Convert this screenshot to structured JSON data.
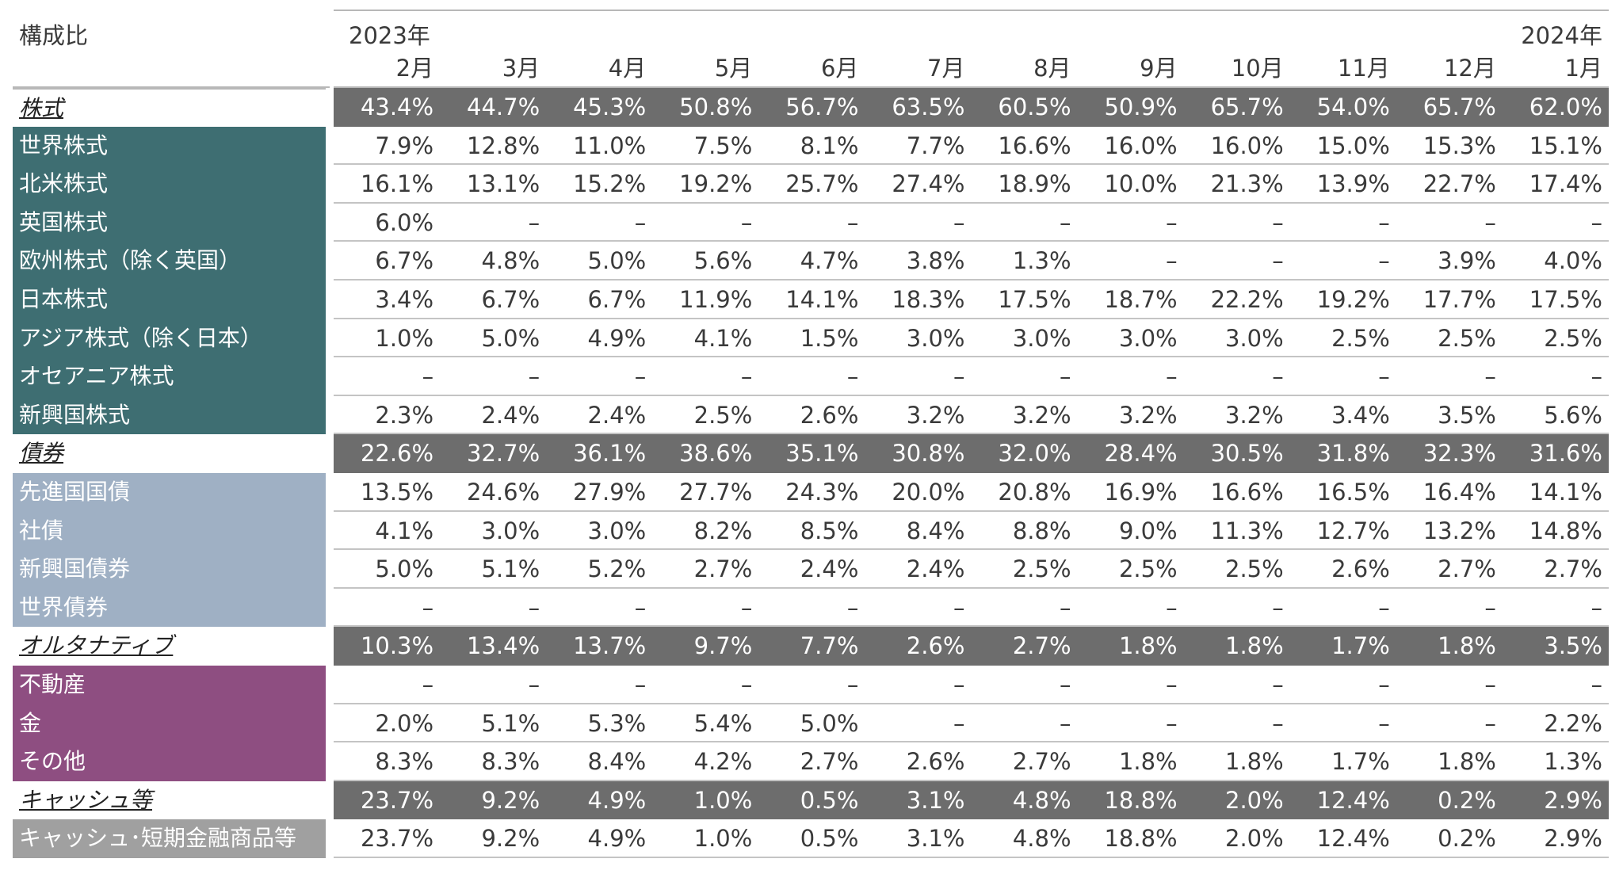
{
  "corner_label": "構成比",
  "year_start": "2023年",
  "year_end": "2024年",
  "months": [
    "2月",
    "3月",
    "4月",
    "5月",
    "6月",
    "7月",
    "8月",
    "9月",
    "10月",
    "11月",
    "12月",
    "1月"
  ],
  "rows": [
    {
      "type": "total",
      "group": "equity",
      "label": "株式",
      "values": [
        "43.4%",
        "44.7%",
        "45.3%",
        "50.8%",
        "56.7%",
        "63.5%",
        "60.5%",
        "50.9%",
        "65.7%",
        "54.0%",
        "65.7%",
        "62.0%"
      ]
    },
    {
      "type": "sub",
      "group": "equity",
      "label": "世界株式",
      "values": [
        "7.9%",
        "12.8%",
        "11.0%",
        "7.5%",
        "8.1%",
        "7.7%",
        "16.6%",
        "16.0%",
        "16.0%",
        "15.0%",
        "15.3%",
        "15.1%"
      ]
    },
    {
      "type": "sub",
      "group": "equity",
      "label": "北米株式",
      "values": [
        "16.1%",
        "13.1%",
        "15.2%",
        "19.2%",
        "25.7%",
        "27.4%",
        "18.9%",
        "10.0%",
        "21.3%",
        "13.9%",
        "22.7%",
        "17.4%"
      ]
    },
    {
      "type": "sub",
      "group": "equity",
      "label": "英国株式",
      "values": [
        "6.0%",
        "–",
        "–",
        "–",
        "–",
        "–",
        "–",
        "–",
        "–",
        "–",
        "–",
        "–"
      ]
    },
    {
      "type": "sub",
      "group": "equity",
      "label": "欧州株式（除く英国）",
      "values": [
        "6.7%",
        "4.8%",
        "5.0%",
        "5.6%",
        "4.7%",
        "3.8%",
        "1.3%",
        "–",
        "–",
        "–",
        "3.9%",
        "4.0%"
      ]
    },
    {
      "type": "sub",
      "group": "equity",
      "label": "日本株式",
      "values": [
        "3.4%",
        "6.7%",
        "6.7%",
        "11.9%",
        "14.1%",
        "18.3%",
        "17.5%",
        "18.7%",
        "22.2%",
        "19.2%",
        "17.7%",
        "17.5%"
      ]
    },
    {
      "type": "sub",
      "group": "equity",
      "label": "アジア株式（除く日本）",
      "values": [
        "1.0%",
        "5.0%",
        "4.9%",
        "4.1%",
        "1.5%",
        "3.0%",
        "3.0%",
        "3.0%",
        "3.0%",
        "2.5%",
        "2.5%",
        "2.5%"
      ]
    },
    {
      "type": "sub",
      "group": "equity",
      "label": "オセアニア株式",
      "values": [
        "–",
        "–",
        "–",
        "–",
        "–",
        "–",
        "–",
        "–",
        "–",
        "–",
        "–",
        "–"
      ]
    },
    {
      "type": "sub",
      "group": "equity",
      "label": "新興国株式",
      "values": [
        "2.3%",
        "2.4%",
        "2.4%",
        "2.5%",
        "2.6%",
        "3.2%",
        "3.2%",
        "3.2%",
        "3.2%",
        "3.4%",
        "3.5%",
        "5.6%"
      ]
    },
    {
      "type": "total",
      "group": "bond",
      "label": "債券",
      "values": [
        "22.6%",
        "32.7%",
        "36.1%",
        "38.6%",
        "35.1%",
        "30.8%",
        "32.0%",
        "28.4%",
        "30.5%",
        "31.8%",
        "32.3%",
        "31.6%"
      ]
    },
    {
      "type": "sub",
      "group": "bond",
      "label": "先進国国債",
      "values": [
        "13.5%",
        "24.6%",
        "27.9%",
        "27.7%",
        "24.3%",
        "20.0%",
        "20.8%",
        "16.9%",
        "16.6%",
        "16.5%",
        "16.4%",
        "14.1%"
      ]
    },
    {
      "type": "sub",
      "group": "bond",
      "label": "社債",
      "values": [
        "4.1%",
        "3.0%",
        "3.0%",
        "8.2%",
        "8.5%",
        "8.4%",
        "8.8%",
        "9.0%",
        "11.3%",
        "12.7%",
        "13.2%",
        "14.8%"
      ]
    },
    {
      "type": "sub",
      "group": "bond",
      "label": "新興国債券",
      "values": [
        "5.0%",
        "5.1%",
        "5.2%",
        "2.7%",
        "2.4%",
        "2.4%",
        "2.5%",
        "2.5%",
        "2.5%",
        "2.6%",
        "2.7%",
        "2.7%"
      ]
    },
    {
      "type": "sub",
      "group": "bond",
      "label": "世界債券",
      "values": [
        "–",
        "–",
        "–",
        "–",
        "–",
        "–",
        "–",
        "–",
        "–",
        "–",
        "–",
        "–"
      ]
    },
    {
      "type": "total",
      "group": "alt",
      "label": "オルタナティブ",
      "values": [
        "10.3%",
        "13.4%",
        "13.7%",
        "9.7%",
        "7.7%",
        "2.6%",
        "2.7%",
        "1.8%",
        "1.8%",
        "1.7%",
        "1.8%",
        "3.5%"
      ]
    },
    {
      "type": "sub",
      "group": "alt",
      "label": "不動産",
      "values": [
        "–",
        "–",
        "–",
        "–",
        "–",
        "–",
        "–",
        "–",
        "–",
        "–",
        "–",
        "–"
      ]
    },
    {
      "type": "sub",
      "group": "alt",
      "label": "金",
      "values": [
        "2.0%",
        "5.1%",
        "5.3%",
        "5.4%",
        "5.0%",
        "–",
        "–",
        "–",
        "–",
        "–",
        "–",
        "2.2%"
      ]
    },
    {
      "type": "sub",
      "group": "alt",
      "label": "その他",
      "values": [
        "8.3%",
        "8.3%",
        "8.4%",
        "4.2%",
        "2.7%",
        "2.6%",
        "2.7%",
        "1.8%",
        "1.8%",
        "1.7%",
        "1.8%",
        "1.3%"
      ]
    },
    {
      "type": "total",
      "group": "cash",
      "label": "キャッシュ等",
      "values": [
        "23.7%",
        "9.2%",
        "4.9%",
        "1.0%",
        "0.5%",
        "3.1%",
        "4.8%",
        "18.8%",
        "2.0%",
        "12.4%",
        "0.2%",
        "2.9%"
      ]
    },
    {
      "type": "sub",
      "group": "cash",
      "label": "キャッシュ･短期金融商品等",
      "values": [
        "23.7%",
        "9.2%",
        "4.9%",
        "1.0%",
        "0.5%",
        "3.1%",
        "4.8%",
        "18.8%",
        "2.0%",
        "12.4%",
        "0.2%",
        "2.9%"
      ]
    }
  ],
  "colors": {
    "equity": "#3e6e72",
    "bond": "#9fb0c4",
    "alt": "#8e4e81",
    "cash": "#a0a0a0",
    "total_bar": "#6d6d6d"
  }
}
